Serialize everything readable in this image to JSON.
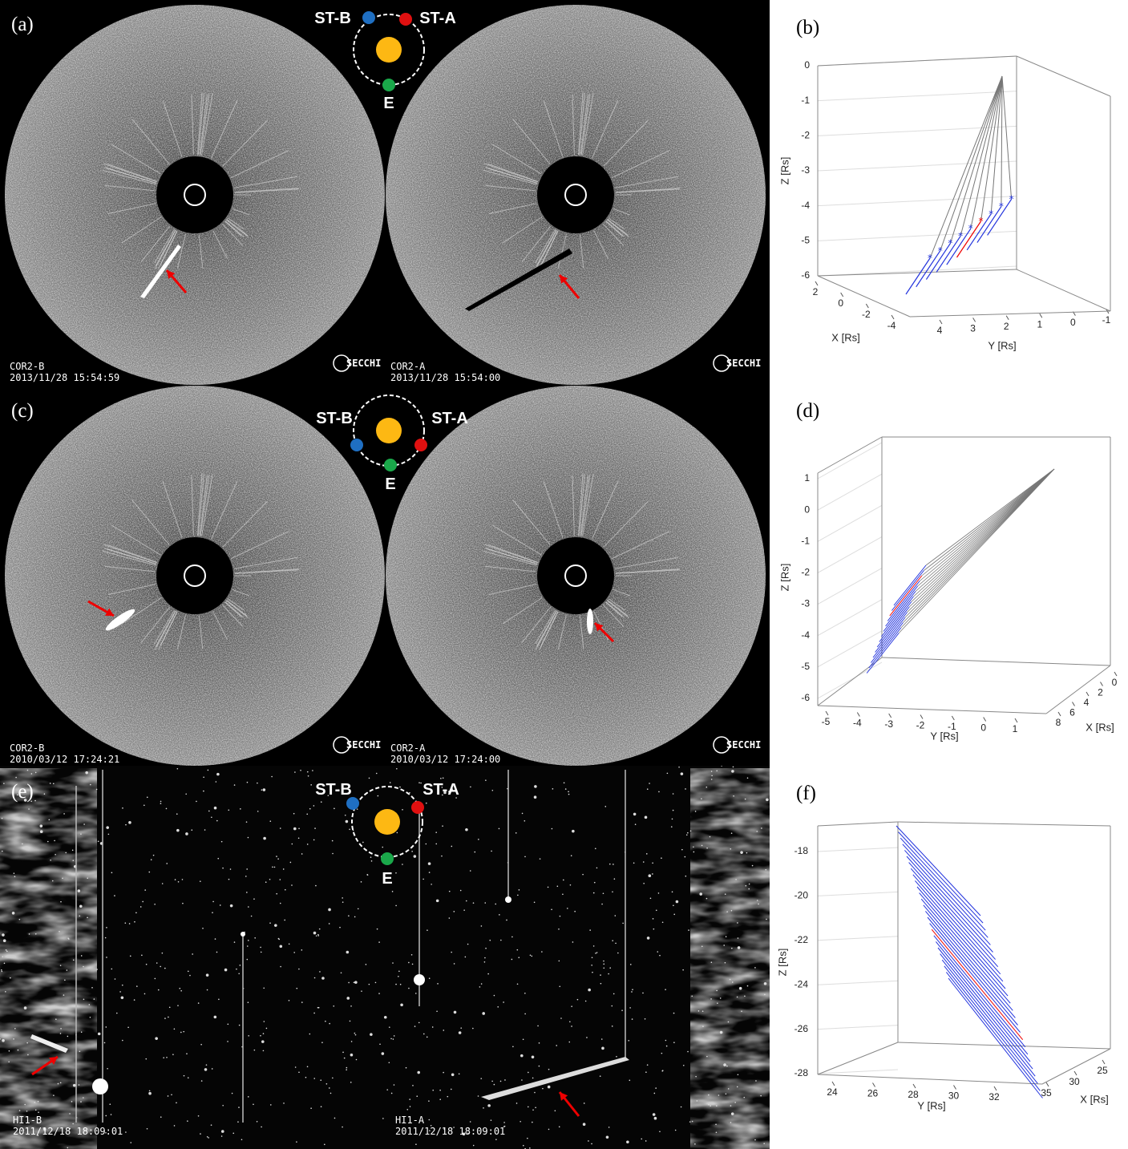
{
  "panel_labels": [
    "(a)",
    "(b)",
    "(c)",
    "(d)",
    "(e)",
    "(f)"
  ],
  "images": [
    {
      "instrument": "COR2-B",
      "timestamp": "2013/11/28 15:54:59",
      "logo": "SECCHI"
    },
    {
      "instrument": "COR2-A",
      "timestamp": "2013/11/28 15:54:00",
      "logo": "SECCHI"
    },
    {
      "instrument": "COR2-B",
      "timestamp": "2010/03/12 17:24:21",
      "logo": "SECCHI"
    },
    {
      "instrument": "COR2-A",
      "timestamp": "2010/03/12 17:24:00",
      "logo": "SECCHI"
    },
    {
      "instrument": "HI1-B",
      "timestamp": "2011/12/18 18:09:01"
    },
    {
      "instrument": "HI1-A",
      "timestamp": "2011/12/18 18:09:01"
    }
  ],
  "orbits": [
    {
      "left": "ST-B",
      "right": "ST-A",
      "earth": "E"
    },
    {
      "left": "ST-B",
      "right": "ST-A",
      "earth": "E"
    },
    {
      "left": "ST-B",
      "right": "ST-A",
      "earth": "E"
    }
  ],
  "plots": [
    {
      "zlabel": "Z [Rs]",
      "zticks": [
        0,
        -1,
        -2,
        -3,
        -4,
        -5,
        -6
      ],
      "xlabel": "X [Rs]",
      "xticks": [
        2,
        0,
        -2,
        -4
      ],
      "ylabel": "Y [Rs]",
      "yticks": [
        4,
        3,
        2,
        1,
        0,
        -1
      ]
    },
    {
      "zlabel": "Z [Rs]",
      "zticks": [
        1,
        0,
        -1,
        -2,
        -3,
        -4,
        -5,
        -6
      ],
      "ylabel": "Y [Rs]",
      "yticks": [
        -5,
        -4,
        -3,
        -2,
        -1,
        0,
        1
      ],
      "xlabel": "X [Rs]",
      "xticks": [
        0,
        2,
        4,
        6,
        8
      ]
    },
    {
      "zlabel": "Z [Rs]",
      "zticks": [
        -18,
        -20,
        -22,
        -24,
        -26,
        -28
      ],
      "ylabel": "Y [Rs]",
      "yticks": [
        24,
        26,
        28,
        30,
        32
      ],
      "xlabel": "X [Rs]",
      "xticks": [
        25,
        30,
        35
      ]
    }
  ]
}
